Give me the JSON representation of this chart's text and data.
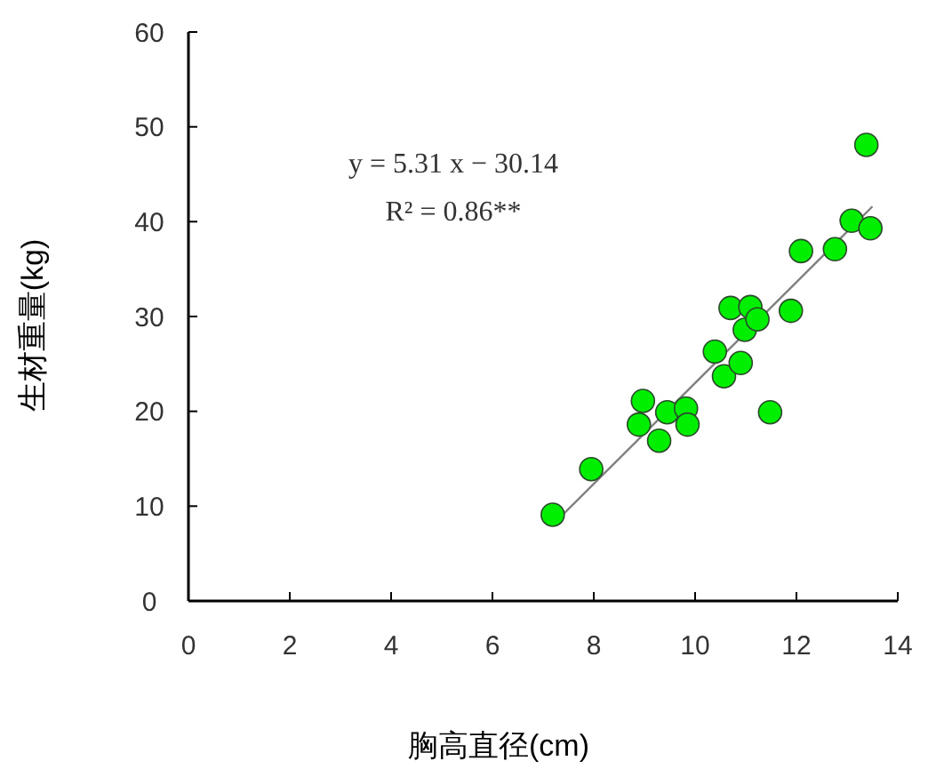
{
  "chart_data": {
    "type": "scatter",
    "xlabel": "胸高直径(cm)",
    "ylabel": "生材重量(kg)",
    "xlim": [
      0,
      14
    ],
    "xticks": [
      0,
      2,
      4,
      6,
      8,
      10,
      12,
      14
    ],
    "ylim": [
      0,
      60
    ],
    "yticks": [
      0,
      10,
      20,
      30,
      40,
      50,
      60
    ],
    "grid": false,
    "annotations": [
      "y = 5.31 x − 30.14",
      "R² = 0.86**"
    ],
    "series": [
      {
        "color": "#00ee00",
        "marker": "circle",
        "x": [
          7.19,
          7.95,
          8.97,
          8.89,
          9.29,
          9.45,
          9.82,
          9.85,
          10.39,
          10.57,
          10.9,
          10.7,
          11.09,
          10.98,
          11.23,
          11.89,
          11.48,
          12.09,
          12.76,
          13.09,
          13.46,
          13.38
        ],
        "values": [
          9.1,
          13.9,
          21.1,
          18.6,
          16.9,
          19.9,
          20.3,
          18.6,
          26.3,
          23.7,
          25.1,
          30.9,
          31.0,
          28.6,
          29.7,
          30.6,
          19.9,
          36.9,
          37.1,
          40.1,
          39.3,
          48.1
        ]
      },
      {
        "type": "line",
        "color": "#808080",
        "marker": "none",
        "x": [
          7.2,
          13.5
        ],
        "values": [
          8.1,
          41.6
        ]
      }
    ]
  }
}
